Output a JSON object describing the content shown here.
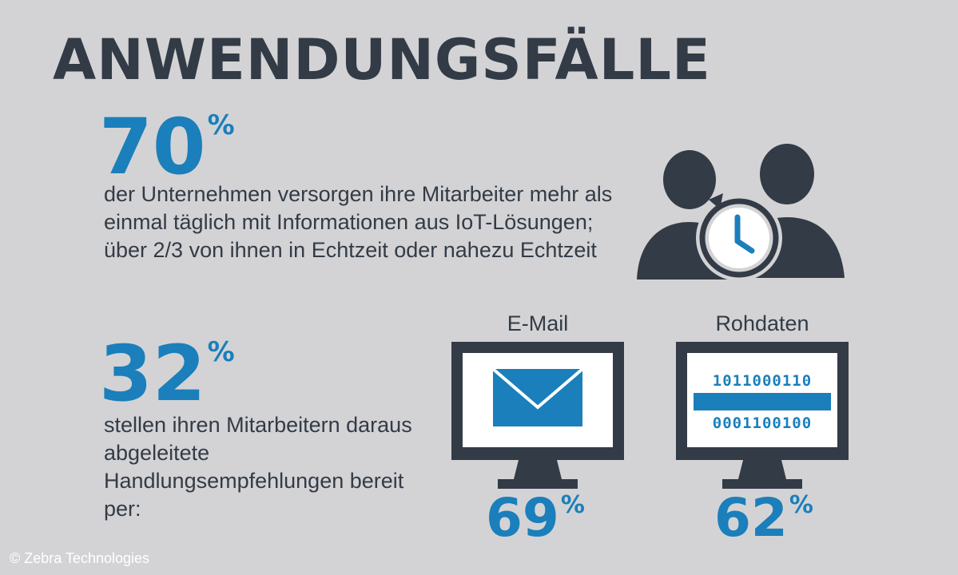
{
  "title": "ANWENDUNGSFÄLLE",
  "stat1": {
    "value": "70",
    "unit": "%",
    "description": "der Unternehmen versorgen ihre Mitarbeiter mehr als einmal täglich mit Informationen aus IoT-Lösungen; über 2/3 von ihnen in Echtzeit oder nahezu Echtzeit"
  },
  "stat2": {
    "value": "32",
    "unit": "%",
    "description": "stellen ihren Mitarbeitern daraus abgeleitete Handlungsempfehlungen bereit per:"
  },
  "channels": [
    {
      "label": "E-Mail",
      "value": "69",
      "unit": "%",
      "icon": "monitor-envelope-icon"
    },
    {
      "label": "Rohdaten",
      "value": "62",
      "unit": "%",
      "icon": "monitor-binary-icon",
      "binary_lines": [
        "1011000110",
        "0001100100"
      ]
    }
  ],
  "people_icon": "people-clock-icon",
  "credit": "© Zebra Technologies",
  "colors": {
    "background": "#d3d3d5",
    "dark": "#333b46",
    "accent": "#1a7fbb"
  }
}
